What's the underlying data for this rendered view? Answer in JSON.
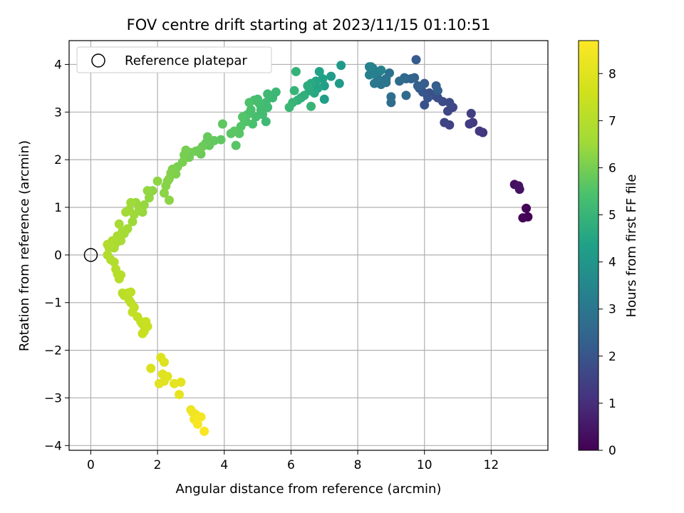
{
  "chart_data": {
    "type": "scatter",
    "title": "FOV centre drift starting at 2023/11/15 01:10:51",
    "xlabel": "Angular distance from reference (arcmin)",
    "ylabel": "Rotation from reference (arcmin)",
    "xlim": [
      -0.65,
      13.7
    ],
    "ylim": [
      -4.1,
      4.5
    ],
    "x_ticks": [
      0,
      2,
      4,
      6,
      8,
      10,
      12
    ],
    "y_ticks": [
      -4,
      -3,
      -2,
      -1,
      0,
      1,
      2,
      3,
      4
    ],
    "grid": true,
    "legend": {
      "location": "top-left",
      "entries": [
        "Reference platepar"
      ]
    },
    "reference_point": {
      "x": 0,
      "y": 0
    },
    "colorbar": {
      "label": "Hours from first FF file",
      "colormap": "viridis",
      "range": [
        0,
        8.7
      ],
      "ticks": [
        0,
        1,
        2,
        3,
        4,
        5,
        6,
        7,
        8
      ]
    },
    "series": [
      {
        "points": [
          [
            13.1,
            0.8,
            0.05
          ],
          [
            12.95,
            0.78,
            0.1
          ],
          [
            13.05,
            0.98,
            0.08
          ],
          [
            12.7,
            1.48,
            0.3
          ],
          [
            12.85,
            1.38,
            0.35
          ],
          [
            12.82,
            1.45,
            0.4
          ],
          [
            11.75,
            2.57,
            1.2
          ],
          [
            11.65,
            2.6,
            1.25
          ],
          [
            11.45,
            2.78,
            1.3
          ],
          [
            11.35,
            2.75,
            1.35
          ],
          [
            11.4,
            2.97,
            1.4
          ],
          [
            10.75,
            2.73,
            1.5
          ],
          [
            10.6,
            2.78,
            1.55
          ],
          [
            10.7,
            3.02,
            1.6
          ],
          [
            10.85,
            3.1,
            1.65
          ],
          [
            10.75,
            3.2,
            1.7
          ],
          [
            10.55,
            3.22,
            1.75
          ],
          [
            10.4,
            3.3,
            1.8
          ],
          [
            10.3,
            3.35,
            1.85
          ],
          [
            10.15,
            3.4,
            1.9
          ],
          [
            10.0,
            3.15,
            1.95
          ],
          [
            10.1,
            3.3,
            2.0
          ],
          [
            9.95,
            3.42,
            2.05
          ],
          [
            9.85,
            3.5,
            2.1
          ],
          [
            9.75,
            4.1,
            2.15
          ],
          [
            10.0,
            3.6,
            2.2
          ],
          [
            10.35,
            3.55,
            2.25
          ],
          [
            10.4,
            3.45,
            2.3
          ],
          [
            9.8,
            3.55,
            2.35
          ],
          [
            9.7,
            3.72,
            2.4
          ],
          [
            9.6,
            3.7,
            2.45
          ],
          [
            9.45,
            3.7,
            2.5
          ],
          [
            9.4,
            3.72,
            2.55
          ],
          [
            9.45,
            3.35,
            2.6
          ],
          [
            9.25,
            3.65,
            2.65
          ],
          [
            9.0,
            3.2,
            2.7
          ],
          [
            9.0,
            3.32,
            2.75
          ],
          [
            8.95,
            3.82,
            2.8
          ],
          [
            8.85,
            3.7,
            2.85
          ],
          [
            8.7,
            3.58,
            2.9
          ],
          [
            8.85,
            3.62,
            2.95
          ],
          [
            8.6,
            3.7,
            3.0
          ],
          [
            8.5,
            3.6,
            3.05
          ],
          [
            8.65,
            3.85,
            3.1
          ],
          [
            8.45,
            3.92,
            3.15
          ],
          [
            8.35,
            3.95,
            3.2
          ],
          [
            8.5,
            3.8,
            3.25
          ],
          [
            8.35,
            3.78,
            3.3
          ],
          [
            8.7,
            3.88,
            3.35
          ],
          [
            8.4,
            3.95,
            3.4
          ],
          [
            7.5,
            3.98,
            4.1
          ],
          [
            7.45,
            3.6,
            4.15
          ],
          [
            7.2,
            3.75,
            4.2
          ],
          [
            7.0,
            3.55,
            4.25
          ],
          [
            7.0,
            3.27,
            4.3
          ],
          [
            6.95,
            3.7,
            4.35
          ],
          [
            6.85,
            3.85,
            4.4
          ],
          [
            6.8,
            3.5,
            4.45
          ],
          [
            6.75,
            3.65,
            4.5
          ],
          [
            6.7,
            3.4,
            4.55
          ],
          [
            6.6,
            3.6,
            4.6
          ],
          [
            6.55,
            3.45,
            4.65
          ],
          [
            6.5,
            3.55,
            4.7
          ],
          [
            6.4,
            3.35,
            4.75
          ],
          [
            6.3,
            3.3,
            4.8
          ],
          [
            6.2,
            3.25,
            4.85
          ],
          [
            6.15,
            3.85,
            4.9
          ],
          [
            6.1,
            3.45,
            4.95
          ],
          [
            6.05,
            3.2,
            5.0
          ],
          [
            5.95,
            3.1,
            5.05
          ],
          [
            6.6,
            3.12,
            5.0
          ],
          [
            5.55,
            3.42,
            5.1
          ],
          [
            5.45,
            3.3,
            5.1
          ],
          [
            5.3,
            3.38,
            5.15
          ],
          [
            5.25,
            2.8,
            5.15
          ],
          [
            5.3,
            3.1,
            5.2
          ],
          [
            5.25,
            3.2,
            5.2
          ],
          [
            5.15,
            2.95,
            5.25
          ],
          [
            5.1,
            3.05,
            5.25
          ],
          [
            5.05,
            3.18,
            5.3
          ],
          [
            5.0,
            3.27,
            5.3
          ],
          [
            4.95,
            2.9,
            5.35
          ],
          [
            4.9,
            3.25,
            5.35
          ],
          [
            4.85,
            2.75,
            5.4
          ],
          [
            4.8,
            3.05,
            5.4
          ],
          [
            4.75,
            3.2,
            5.45
          ],
          [
            4.7,
            2.95,
            5.45
          ],
          [
            4.65,
            2.8,
            5.5
          ],
          [
            4.6,
            2.85,
            5.5
          ],
          [
            4.55,
            2.9,
            5.55
          ],
          [
            4.5,
            2.7,
            5.55
          ],
          [
            4.45,
            2.55,
            5.6
          ],
          [
            4.35,
            2.3,
            5.6
          ],
          [
            4.3,
            2.6,
            5.65
          ],
          [
            4.2,
            2.55,
            5.65
          ],
          [
            3.95,
            2.75,
            5.7
          ],
          [
            3.9,
            2.42,
            5.7
          ],
          [
            3.7,
            2.4,
            5.75
          ],
          [
            3.55,
            2.3,
            5.75
          ],
          [
            3.5,
            2.48,
            5.8
          ],
          [
            3.45,
            2.35,
            5.8
          ],
          [
            3.35,
            2.28,
            5.85
          ],
          [
            3.3,
            2.12,
            5.85
          ],
          [
            3.25,
            2.2,
            5.9
          ],
          [
            3.15,
            2.18,
            5.9
          ],
          [
            3.0,
            2.15,
            5.95
          ],
          [
            2.95,
            2.05,
            5.95
          ],
          [
            2.85,
            2.2,
            6.0
          ],
          [
            2.8,
            2.1,
            6.0
          ],
          [
            2.75,
            1.95,
            6.05
          ],
          [
            2.6,
            1.85,
            6.05
          ],
          [
            2.55,
            1.7,
            6.1
          ],
          [
            2.45,
            1.8,
            6.1
          ],
          [
            2.4,
            1.72,
            6.15
          ],
          [
            2.35,
            1.6,
            6.15
          ],
          [
            2.3,
            1.55,
            6.2
          ],
          [
            2.25,
            1.45,
            6.2
          ],
          [
            2.2,
            1.3,
            6.25
          ],
          [
            2.35,
            1.15,
            6.25
          ],
          [
            2.0,
            1.55,
            6.3
          ],
          [
            1.85,
            1.35,
            6.3
          ],
          [
            1.75,
            1.2,
            6.35
          ],
          [
            1.7,
            1.35,
            6.35
          ],
          [
            1.6,
            1.05,
            6.4
          ],
          [
            1.55,
            0.9,
            6.4
          ],
          [
            1.45,
            0.95,
            6.45
          ],
          [
            1.35,
            1.1,
            6.45
          ],
          [
            1.3,
            0.85,
            6.5
          ],
          [
            1.25,
            0.7,
            6.5
          ],
          [
            1.2,
            1.1,
            6.55
          ],
          [
            1.15,
            0.95,
            6.55
          ],
          [
            1.1,
            0.55,
            6.6
          ],
          [
            1.05,
            0.9,
            6.6
          ],
          [
            1.0,
            0.45,
            6.65
          ],
          [
            0.95,
            0.5,
            6.65
          ],
          [
            0.9,
            0.3,
            6.7
          ],
          [
            0.85,
            0.65,
            6.7
          ],
          [
            0.8,
            0.4,
            6.75
          ],
          [
            0.75,
            0.25,
            6.75
          ],
          [
            0.7,
            0.15,
            6.8
          ],
          [
            0.65,
            0.3,
            6.8
          ],
          [
            0.6,
            0.2,
            6.85
          ],
          [
            0.55,
            0.15,
            6.85
          ],
          [
            0.5,
            0.0,
            6.9
          ],
          [
            0.5,
            0.22,
            6.9
          ],
          [
            0.6,
            -0.1,
            6.95
          ],
          [
            0.7,
            -0.15,
            6.95
          ],
          [
            0.75,
            -0.3,
            7.0
          ],
          [
            0.8,
            -0.4,
            7.0
          ],
          [
            0.85,
            -0.5,
            7.05
          ],
          [
            0.9,
            -0.42,
            7.05
          ],
          [
            0.95,
            -0.8,
            7.1
          ],
          [
            1.0,
            -0.85,
            7.1
          ],
          [
            1.1,
            -0.8,
            7.15
          ],
          [
            1.15,
            -0.95,
            7.15
          ],
          [
            1.2,
            -1.0,
            7.2
          ],
          [
            1.2,
            -0.78,
            7.2
          ],
          [
            1.25,
            -1.2,
            7.25
          ],
          [
            1.3,
            -1.1,
            7.25
          ],
          [
            1.4,
            -1.3,
            7.3
          ],
          [
            1.5,
            -1.4,
            7.3
          ],
          [
            1.55,
            -1.45,
            7.35
          ],
          [
            1.6,
            -1.6,
            7.35
          ],
          [
            1.65,
            -1.4,
            7.4
          ],
          [
            1.7,
            -1.5,
            7.4
          ],
          [
            1.55,
            -1.65,
            7.45
          ],
          [
            2.1,
            -2.15,
            7.9
          ],
          [
            2.2,
            -2.25,
            7.95
          ],
          [
            2.15,
            -2.5,
            8.0
          ],
          [
            2.3,
            -2.55,
            8.0
          ],
          [
            2.05,
            -2.7,
            8.05
          ],
          [
            2.2,
            -2.65,
            8.05
          ],
          [
            2.5,
            -2.7,
            8.1
          ],
          [
            2.7,
            -2.67,
            8.1
          ],
          [
            2.65,
            -2.93,
            8.15
          ],
          [
            1.8,
            -2.38,
            7.85
          ],
          [
            3.0,
            -3.25,
            8.3
          ],
          [
            3.05,
            -3.3,
            8.35
          ],
          [
            3.15,
            -3.35,
            8.4
          ],
          [
            3.1,
            -3.45,
            8.45
          ],
          [
            3.3,
            -3.4,
            8.5
          ],
          [
            3.2,
            -3.55,
            8.55
          ],
          [
            3.4,
            -3.7,
            8.6
          ]
        ]
      }
    ]
  }
}
